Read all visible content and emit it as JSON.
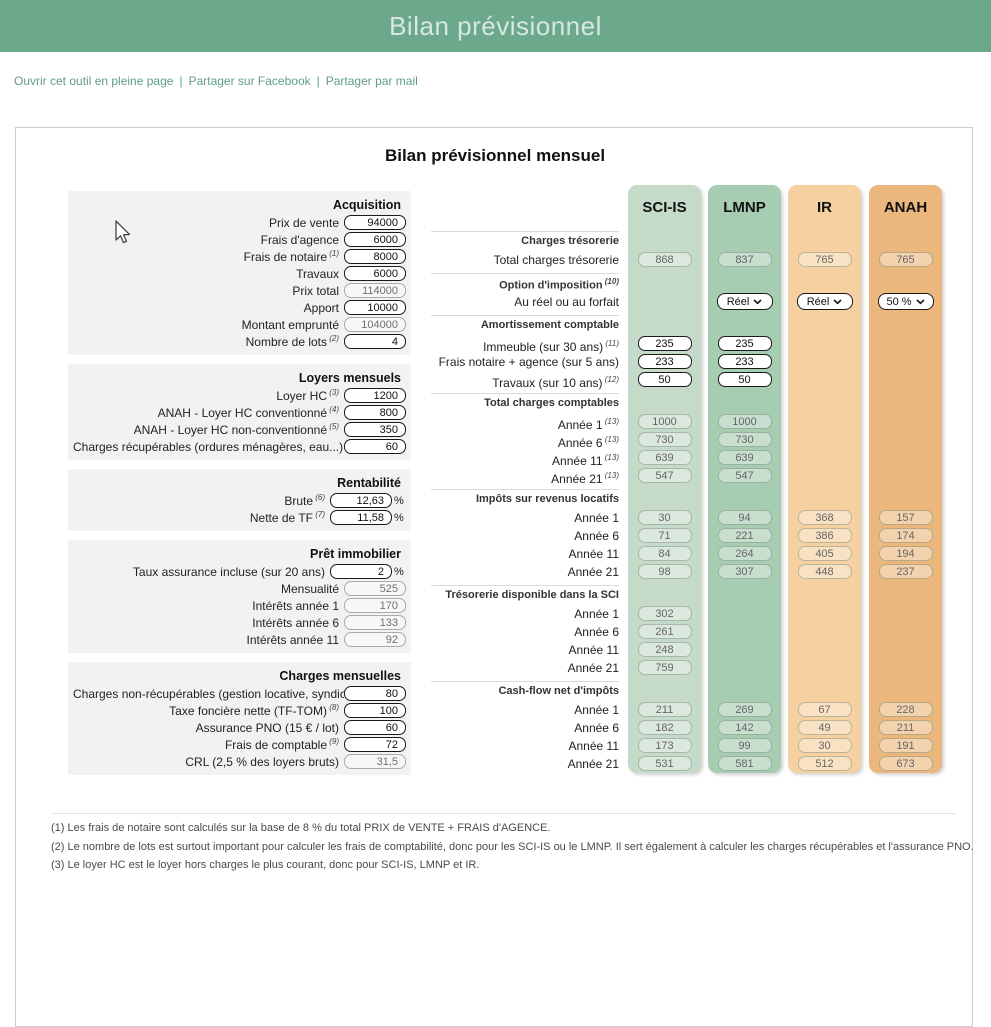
{
  "colors": {
    "top_bar_bg": "#6ca98c",
    "link": "#5f9e85",
    "left_section_bg": "#f2f2f2",
    "col_sci_is": "#c5dac8",
    "col_lmnp": "#a6ccb2",
    "col_ir": "#f5d1a1",
    "col_anah": "#ecb77c"
  },
  "header": {
    "title": "Bilan prévisionnel"
  },
  "links": {
    "separator": "|",
    "items": [
      "Ouvrir cet outil en pleine page",
      "Partager sur Facebook",
      "Partager par mail"
    ]
  },
  "main": {
    "title": "Bilan prévisionnel mensuel"
  },
  "left_sections": [
    {
      "title": "Acquisition",
      "fields": [
        {
          "label": "Prix de vente",
          "value": "94000",
          "type": "input"
        },
        {
          "label": "Frais d'agence",
          "value": "6000",
          "type": "input"
        },
        {
          "label": "Frais de notaire",
          "sup": "(1)",
          "value": "8000",
          "type": "input"
        },
        {
          "label": "Travaux",
          "value": "6000",
          "type": "input"
        },
        {
          "label": "Prix total",
          "value": "114000",
          "type": "disabled"
        },
        {
          "label": "Apport",
          "value": "10000",
          "type": "input"
        },
        {
          "label": "Montant emprunté",
          "value": "104000",
          "type": "disabled"
        },
        {
          "label": "Nombre de lots",
          "sup": "(2)",
          "value": "4",
          "type": "input"
        }
      ]
    },
    {
      "title": "Loyers mensuels",
      "fields": [
        {
          "label": "Loyer HC",
          "sup": "(3)",
          "value": "1200",
          "type": "input"
        },
        {
          "label": "ANAH - Loyer HC conventionné",
          "sup": "(4)",
          "value": "800",
          "type": "input"
        },
        {
          "label": "ANAH - Loyer HC non-conventionné",
          "sup": "(5)",
          "value": "350",
          "type": "input"
        },
        {
          "label": "Charges récupérables (ordures ménagères, eau...)",
          "value": "60",
          "type": "input"
        }
      ]
    },
    {
      "title": "Rentabilité",
      "fields": [
        {
          "label": "Brute",
          "sup": "(6)",
          "value": "12,63",
          "type": "input",
          "suffix": "%"
        },
        {
          "label": "Nette de TF",
          "sup": "(7)",
          "value": "11,58",
          "type": "input",
          "suffix": "%"
        }
      ]
    },
    {
      "title": "Prêt immobilier",
      "fields": [
        {
          "label": "Taux assurance incluse (sur 20 ans)",
          "value": "2",
          "type": "input",
          "suffix": "%"
        },
        {
          "label": "Mensualité",
          "value": "525",
          "type": "disabled"
        },
        {
          "label": "Intérêts année 1",
          "value": "170",
          "type": "disabled"
        },
        {
          "label": "Intérêts année 6",
          "value": "133",
          "type": "disabled"
        },
        {
          "label": "Intérêts année 11",
          "value": "92",
          "type": "disabled"
        }
      ]
    },
    {
      "title": "Charges mensuelles",
      "fields": [
        {
          "label": "Charges non-récupérables (gestion locative, syndic...)",
          "value": "80",
          "type": "input"
        },
        {
          "label": "Taxe foncière nette (TF-TOM)",
          "sup": "(8)",
          "value": "100",
          "type": "input"
        },
        {
          "label": "Assurance PNO (15 € / lot)",
          "value": "60",
          "type": "input"
        },
        {
          "label": "Frais de comptable",
          "sup": "(9)",
          "value": "72",
          "type": "input"
        },
        {
          "label": "CRL (2,5 % des loyers bruts)",
          "value": "31,5",
          "type": "disabled"
        }
      ]
    }
  ],
  "comparison": {
    "columns": [
      {
        "id": "sci-is",
        "label": "SCI-IS",
        "bg": "#c5dac8"
      },
      {
        "id": "lmnp",
        "label": "LMNP",
        "bg": "#a6ccb2"
      },
      {
        "id": "ir",
        "label": "IR",
        "bg": "#f5d1a1"
      },
      {
        "id": "anah",
        "label": "ANAH",
        "bg": "#ecb77c"
      }
    ],
    "sections": [
      {
        "header": "Charges trésorerie",
        "rows": [
          {
            "label": "Total charges trésorerie",
            "values": [
              {
                "t": "d",
                "v": "868"
              },
              {
                "t": "d",
                "v": "837"
              },
              {
                "t": "d",
                "v": "765"
              },
              {
                "t": "d",
                "v": "765"
              }
            ]
          }
        ]
      },
      {
        "header": "Option d'imposition",
        "sup": "(10)",
        "rows": [
          {
            "label": "Au réel ou au forfait",
            "values": [
              null,
              {
                "t": "s",
                "v": "Réel"
              },
              {
                "t": "s",
                "v": "Réel"
              },
              {
                "t": "s",
                "v": "50 %"
              }
            ]
          }
        ]
      },
      {
        "header": "Amortissement comptable",
        "rows": [
          {
            "label": "Immeuble (sur 30 ans)",
            "sup": "(11)",
            "values": [
              {
                "t": "e",
                "v": "235"
              },
              {
                "t": "e",
                "v": "235"
              },
              null,
              null
            ]
          },
          {
            "label": "Frais notaire + agence (sur 5 ans)",
            "values": [
              {
                "t": "e",
                "v": "233"
              },
              {
                "t": "e",
                "v": "233"
              },
              null,
              null
            ]
          },
          {
            "label": "Travaux (sur 10 ans)",
            "sup": "(12)",
            "values": [
              {
                "t": "e",
                "v": "50"
              },
              {
                "t": "e",
                "v": "50"
              },
              null,
              null
            ]
          }
        ]
      },
      {
        "header": "Total charges comptables",
        "rows": [
          {
            "label": "Année 1",
            "sup": "(13)",
            "values": [
              {
                "t": "d",
                "v": "1000"
              },
              {
                "t": "d",
                "v": "1000"
              },
              null,
              null
            ]
          },
          {
            "label": "Année 6",
            "sup": "(13)",
            "values": [
              {
                "t": "d",
                "v": "730"
              },
              {
                "t": "d",
                "v": "730"
              },
              null,
              null
            ]
          },
          {
            "label": "Année 11",
            "sup": "(13)",
            "values": [
              {
                "t": "d",
                "v": "639"
              },
              {
                "t": "d",
                "v": "639"
              },
              null,
              null
            ]
          },
          {
            "label": "Année 21",
            "sup": "(13)",
            "values": [
              {
                "t": "d",
                "v": "547"
              },
              {
                "t": "d",
                "v": "547"
              },
              null,
              null
            ]
          }
        ]
      },
      {
        "header": "Impôts sur revenus locatifs",
        "rows": [
          {
            "label": "Année 1",
            "values": [
              {
                "t": "d",
                "v": "30"
              },
              {
                "t": "d",
                "v": "94"
              },
              {
                "t": "d",
                "v": "368"
              },
              {
                "t": "d",
                "v": "157"
              }
            ]
          },
          {
            "label": "Année 6",
            "values": [
              {
                "t": "d",
                "v": "71"
              },
              {
                "t": "d",
                "v": "221"
              },
              {
                "t": "d",
                "v": "386"
              },
              {
                "t": "d",
                "v": "174"
              }
            ]
          },
          {
            "label": "Année 11",
            "values": [
              {
                "t": "d",
                "v": "84"
              },
              {
                "t": "d",
                "v": "264"
              },
              {
                "t": "d",
                "v": "405"
              },
              {
                "t": "d",
                "v": "194"
              }
            ]
          },
          {
            "label": "Année 21",
            "values": [
              {
                "t": "d",
                "v": "98"
              },
              {
                "t": "d",
                "v": "307"
              },
              {
                "t": "d",
                "v": "448"
              },
              {
                "t": "d",
                "v": "237"
              }
            ]
          }
        ]
      },
      {
        "header": "Trésorerie disponible dans la SCI",
        "rows": [
          {
            "label": "Année 1",
            "values": [
              {
                "t": "d",
                "v": "302"
              },
              null,
              null,
              null
            ]
          },
          {
            "label": "Année 6",
            "values": [
              {
                "t": "d",
                "v": "261"
              },
              null,
              null,
              null
            ]
          },
          {
            "label": "Année 11",
            "values": [
              {
                "t": "d",
                "v": "248"
              },
              null,
              null,
              null
            ]
          },
          {
            "label": "Année 21",
            "values": [
              {
                "t": "d",
                "v": "759"
              },
              null,
              null,
              null
            ]
          }
        ]
      },
      {
        "header": "Cash-flow net d'impôts",
        "rows": [
          {
            "label": "Année 1",
            "values": [
              {
                "t": "d",
                "v": "211"
              },
              {
                "t": "d",
                "v": "269"
              },
              {
                "t": "d",
                "v": "67"
              },
              {
                "t": "d",
                "v": "228"
              }
            ]
          },
          {
            "label": "Année 6",
            "values": [
              {
                "t": "d",
                "v": "182"
              },
              {
                "t": "d",
                "v": "142"
              },
              {
                "t": "d",
                "v": "49"
              },
              {
                "t": "d",
                "v": "211"
              }
            ]
          },
          {
            "label": "Année 11",
            "values": [
              {
                "t": "d",
                "v": "173"
              },
              {
                "t": "d",
                "v": "99"
              },
              {
                "t": "d",
                "v": "30"
              },
              {
                "t": "d",
                "v": "191"
              }
            ]
          },
          {
            "label": "Année 21",
            "values": [
              {
                "t": "d",
                "v": "531"
              },
              {
                "t": "d",
                "v": "581"
              },
              {
                "t": "d",
                "v": "512"
              },
              {
                "t": "d",
                "v": "673"
              }
            ]
          }
        ]
      }
    ]
  },
  "footnotes": [
    "(1) Les frais de notaire sont calculés sur la base de 8 % du total PRIX de VENTE + FRAIS d'AGENCE.",
    "(2) Le nombre de lots est surtout important pour calculer les frais de comptabilité, donc pour les SCI-IS ou le LMNP. Il sert également à calculer les charges récupérables et l'assurance PNO.",
    "(3) Le loyer HC est le loyer hors charges le plus courant, donc pour SCI-IS, LMNP et IR."
  ]
}
